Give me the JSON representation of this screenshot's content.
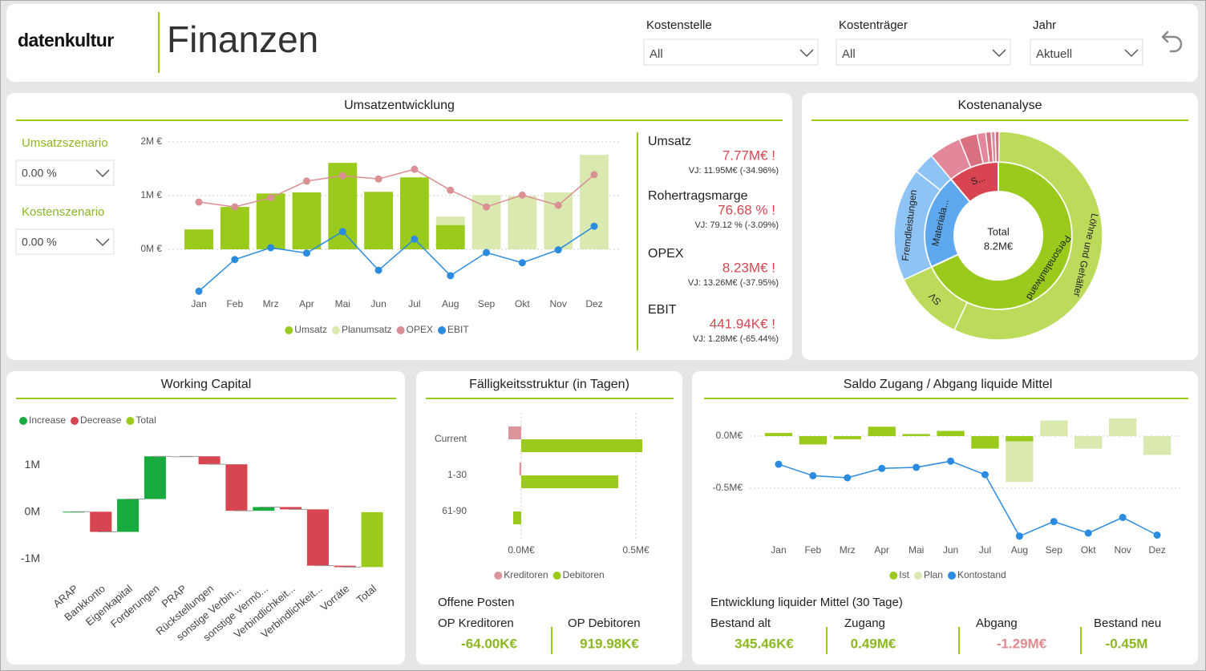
{
  "header": {
    "logo": "datenkultur",
    "title": "Finanzen"
  },
  "filters": [
    {
      "label": "Kostenstelle",
      "value": "All"
    },
    {
      "label": "Kostenträger",
      "value": "All"
    },
    {
      "label": "Jahr",
      "value": "Aktuell"
    }
  ],
  "scenarios": [
    {
      "label": "Umsatzszenario",
      "value": "0.00 %"
    },
    {
      "label": "Kostenszenario",
      "value": "0.00 %"
    }
  ],
  "kpis": [
    {
      "label": "Umsatz",
      "value": "7.77M€ !",
      "previous": "VJ: 11.95M€ (-34.96%)",
      "color": "#d64550"
    },
    {
      "label": "Rohertragsmarge",
      "value": "76.68 % !",
      "previous": "VJ: 79.12 % (-3.09%)",
      "color": "#d64550"
    },
    {
      "label": "OPEX",
      "value": "8.23M€ !",
      "previous": "VJ: 13.26M€ (-37.95%)",
      "color": "#d64550"
    },
    {
      "label": "EBIT",
      "value": "441.94K€ !",
      "previous": "VJ: 1.28M€ (-65.44%)",
      "color": "#d64550"
    }
  ],
  "open_items": {
    "title": "Offene Posten",
    "items": [
      {
        "label": "OP Kreditoren",
        "value": "-64.00K€",
        "color": "#8cb820"
      },
      {
        "label": "OP Debitoren",
        "value": "919.98K€",
        "color": "#8cb820"
      }
    ]
  },
  "liquidity": {
    "title": "Entwicklung liquider Mittel (30 Tage)",
    "items": [
      {
        "label": "Bestand alt",
        "value": "345.46K€",
        "color": "#8cb820"
      },
      {
        "label": "Zugang",
        "value": "0.49M€",
        "color": "#8cb820"
      },
      {
        "label": "Abgang",
        "value": "-1.29M€",
        "color": "#e0898f"
      },
      {
        "label": "Bestand neu",
        "value": "-0.45M",
        "color": "#8cb820"
      }
    ]
  },
  "chart_data": [
    {
      "type": "combo",
      "title": "Umsatzentwicklung",
      "categories": [
        "Jan",
        "Feb",
        "Mrz",
        "Apr",
        "Mai",
        "Jun",
        "Jul",
        "Aug",
        "Sep",
        "Okt",
        "Nov",
        "Dez"
      ],
      "series": [
        {
          "name": "Umsatz",
          "type": "bar",
          "color": "#9acb1c",
          "values": [
            0.37,
            0.79,
            1.04,
            1.06,
            1.61,
            1.07,
            1.34,
            0.45,
            null,
            null,
            null,
            null
          ]
        },
        {
          "name": "Planumsatz",
          "type": "bar",
          "color": "#d9e9b0",
          "values": [
            null,
            null,
            null,
            null,
            null,
            null,
            null,
            0.61,
            1.01,
            0.99,
            1.06,
            1.76
          ]
        },
        {
          "name": "OPEX",
          "type": "line",
          "color": "#d98f93",
          "values": [
            0.88,
            0.79,
            0.96,
            1.27,
            1.37,
            1.31,
            1.49,
            1.1,
            0.79,
            1.01,
            0.82,
            1.39
          ]
        },
        {
          "name": "EBIT",
          "type": "line",
          "color": "#2a8be0",
          "values": [
            -0.78,
            -0.19,
            0.03,
            -0.07,
            0.33,
            -0.39,
            0.19,
            -0.49,
            -0.06,
            -0.25,
            -0.01,
            0.43
          ]
        }
      ],
      "ylim": [
        -0.9,
        2.1
      ],
      "yticks": [
        {
          "value": 0,
          "label": "0M €"
        },
        {
          "value": 1,
          "label": "1M €"
        },
        {
          "value": 2,
          "label": "2M €"
        }
      ],
      "grid": true
    },
    {
      "type": "sunburst",
      "title": "Kostenanalyse",
      "center_label": "Total",
      "total": 8.2,
      "total_label": "8.2M€",
      "segments": [
        {
          "label": "Personalaufwand",
          "value": 5.58,
          "color": "#9acb1c",
          "children": [
            {
              "label": "Löhne und Gehälter",
              "value": 4.67,
              "color": "#bddb5a"
            },
            {
              "label": "SV",
              "value": 0.91,
              "color": "#bddb5a"
            }
          ]
        },
        {
          "label": "Materiala...",
          "value": 1.71,
          "color": "#5ea8ef",
          "children": [
            {
              "label": "Fremdleistungen",
              "value": 1.44,
              "color": "#8ec3f5"
            },
            {
              "label": null,
              "value": 0.27,
              "color": "#8ec3f5"
            }
          ]
        },
        {
          "label": "S...",
          "value": 0.91,
          "color": "#d94452",
          "children": [
            {
              "label": null,
              "value": 0.41,
              "color": "#e3889a"
            },
            {
              "label": null,
              "value": 0.23,
              "color": "#d9707f"
            },
            {
              "label": null,
              "value": 0.11,
              "color": "#e3889a"
            },
            {
              "label": null,
              "value": 0.07,
              "color": "#d9707f"
            },
            {
              "label": null,
              "value": 0.05,
              "color": "#e3889a"
            },
            {
              "label": null,
              "value": 0.05,
              "color": "#d9707f"
            }
          ]
        }
      ]
    },
    {
      "type": "waterfall",
      "title": "Working Capital",
      "categories": [
        "ARAP",
        "Bankkonto",
        "Eigenkapital",
        "Forderungen",
        "PRAP",
        "Rückstellungen",
        "sonstige Verbin...",
        "sonstige Vermö...",
        "Verbindlichkeit...",
        "Verbindlichkeit...",
        "Vorräte",
        "Total"
      ],
      "values": [
        0.01,
        -0.43,
        0.7,
        0.91,
        0,
        -0.17,
        -0.99,
        0.08,
        -0.05,
        -1.2,
        -0.03,
        -1.17
      ],
      "legend": [
        {
          "name": "Increase",
          "color": "#1aab40"
        },
        {
          "name": "Decrease",
          "color": "#d64550"
        },
        {
          "name": "Total",
          "color": "#9acb1c"
        }
      ],
      "ylim": [
        -1.3,
        1.45
      ],
      "yticks": [
        {
          "value": -1,
          "label": "-1M"
        },
        {
          "value": 0,
          "label": "0M"
        },
        {
          "value": 1,
          "label": "1M"
        }
      ]
    },
    {
      "type": "hbar",
      "title": "Fälligkeitsstruktur (in Tagen)",
      "categories": [
        "Current",
        "1-30",
        "61-90"
      ],
      "series": [
        {
          "name": "Kreditoren",
          "color": "#dc9598",
          "values": [
            -0.056,
            -0.008,
            null
          ]
        },
        {
          "name": "Debitoren",
          "color": "#9acb1c",
          "values": [
            0.528,
            0.423,
            -0.035
          ]
        }
      ],
      "xlim": [
        -0.1,
        0.55
      ],
      "xticks": [
        {
          "value": 0,
          "label": "0.0M€"
        },
        {
          "value": 0.5,
          "label": "0.5M€"
        }
      ],
      "grid": true
    },
    {
      "type": "combo",
      "title": "Saldo Zugang / Abgang liquide Mittel",
      "categories": [
        "Jan",
        "Feb",
        "Mrz",
        "Apr",
        "Mai",
        "Jun",
        "Jul",
        "Aug",
        "Sep",
        "Okt",
        "Nov",
        "Dez"
      ],
      "series": [
        {
          "name": "Ist",
          "type": "bar",
          "color": "#9acb1c",
          "values": [
            0.03,
            -0.08,
            -0.03,
            0.09,
            0.02,
            0.05,
            -0.12,
            -0.05,
            null,
            null,
            null,
            null
          ]
        },
        {
          "name": "Plan",
          "type": "bar",
          "color": "#d9e9b0",
          "values": [
            null,
            null,
            null,
            null,
            null,
            null,
            null,
            -0.44,
            0.15,
            -0.12,
            0.17,
            -0.18
          ]
        },
        {
          "name": "Kontostand",
          "type": "line",
          "color": "#2a8be0",
          "values": [
            -0.27,
            -0.38,
            -0.4,
            -0.31,
            -0.3,
            -0.24,
            -0.37,
            -0.96,
            -0.82,
            -0.93,
            -0.78,
            -0.95
          ]
        }
      ],
      "ylim": [
        -1.0,
        0.25
      ],
      "yticks": [
        {
          "value": 0,
          "label": "0.0M€"
        },
        {
          "value": -0.5,
          "label": "-0.5M€"
        }
      ],
      "grid": true
    }
  ]
}
